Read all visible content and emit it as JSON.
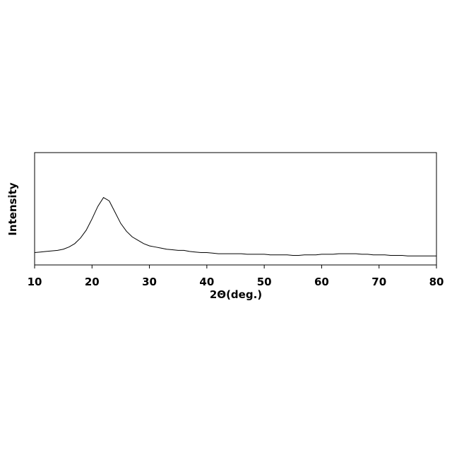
{
  "chart_data": {
    "type": "line",
    "x_label": "2Θ(deg.)",
    "y_label": "Intensity",
    "x": [
      10,
      11,
      12,
      13,
      14,
      15,
      16,
      17,
      18,
      19,
      20,
      21,
      22,
      23,
      24,
      25,
      26,
      27,
      28,
      29,
      30,
      31,
      32,
      33,
      34,
      35,
      36,
      37,
      38,
      39,
      40,
      41,
      42,
      43,
      44,
      45,
      46,
      47,
      48,
      49,
      50,
      51,
      52,
      53,
      54,
      55,
      56,
      57,
      58,
      59,
      60,
      61,
      62,
      63,
      64,
      65,
      66,
      67,
      68,
      69,
      70,
      71,
      72,
      73,
      74,
      75,
      76,
      77,
      78,
      79,
      80
    ],
    "series": [
      {
        "name": "Intensity",
        "color": "#000000",
        "values": [
          11,
          11.5,
          12,
          12.5,
          13,
          14,
          16,
          19,
          24,
          31,
          41,
          52,
          60,
          57,
          47,
          37,
          30,
          25,
          22,
          19,
          17,
          16,
          15,
          14,
          13.5,
          13,
          13,
          12,
          11.5,
          11,
          11,
          10.5,
          10,
          10,
          10,
          10,
          10,
          9.5,
          9.5,
          9.5,
          9.5,
          9,
          9,
          9,
          9,
          8.5,
          8.5,
          9,
          9,
          9,
          9.5,
          9.5,
          9.5,
          10,
          10,
          10,
          10,
          9.5,
          9.5,
          9,
          9,
          9,
          8.5,
          8.5,
          8.5,
          8,
          8,
          8,
          8,
          8,
          8
        ]
      }
    ],
    "xlim": [
      10,
      80
    ],
    "ylim": [
      0,
      100
    ],
    "xticks": [
      10,
      20,
      30,
      40,
      50,
      60,
      70,
      80
    ]
  }
}
